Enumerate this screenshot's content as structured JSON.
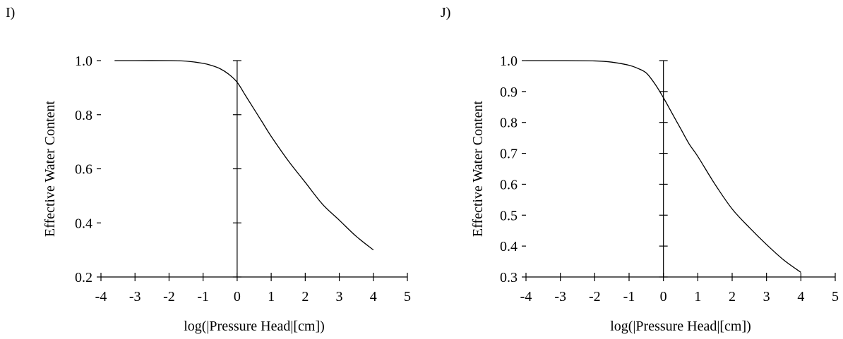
{
  "chart_data": [
    {
      "panel_label": "I)",
      "type": "line",
      "xlabel": "log(|Pressure Head|[cm])",
      "ylabel": "Effective Water Content",
      "xlim": [
        -4,
        5
      ],
      "ylim": [
        0.2,
        1.0
      ],
      "xticks": [
        -4,
        -3,
        -2,
        -1,
        0,
        1,
        2,
        3,
        4,
        5
      ],
      "yticks": [
        0.2,
        0.4,
        0.6,
        0.8,
        1.0
      ],
      "xtick_labels": [
        "-4",
        "-3",
        "-2",
        "-1",
        "0",
        "1",
        "2",
        "3",
        "4",
        "5"
      ],
      "ytick_labels": [
        "0.2",
        "0.4",
        "0.6",
        "0.8",
        "1.0"
      ],
      "grid": false,
      "series": [
        {
          "x": [
            -3.6,
            -3.0,
            -2.0,
            -1.5,
            -1.0,
            -0.75,
            -0.5,
            -0.25,
            0.0,
            0.25,
            0.5,
            0.75,
            1.0,
            1.5,
            2.0,
            2.5,
            3.0,
            3.5,
            4.0
          ],
          "y": [
            1.0,
            1.0,
            1.0,
            0.998,
            0.99,
            0.982,
            0.97,
            0.95,
            0.92,
            0.87,
            0.82,
            0.77,
            0.72,
            0.63,
            0.55,
            0.47,
            0.41,
            0.35,
            0.3
          ]
        }
      ]
    },
    {
      "panel_label": "J)",
      "type": "line",
      "xlabel": "log(|Pressure Head|[cm])",
      "ylabel": "Effective Water Content",
      "xlim": [
        -4,
        5
      ],
      "ylim": [
        0.3,
        1.0
      ],
      "xticks": [
        -4,
        -3,
        -2,
        -1,
        0,
        1,
        2,
        3,
        4,
        5
      ],
      "yticks": [
        0.3,
        0.4,
        0.5,
        0.6,
        0.7,
        0.8,
        0.9,
        1.0
      ],
      "xtick_labels": [
        "-4",
        "-3",
        "-2",
        "-1",
        "0",
        "1",
        "2",
        "3",
        "4",
        "5"
      ],
      "ytick_labels": [
        "0.3",
        "0.4",
        "0.5",
        "0.6",
        "0.7",
        "0.8",
        "0.9",
        "1.0"
      ],
      "grid": false,
      "series": [
        {
          "x": [
            -4.0,
            -3.0,
            -2.0,
            -1.5,
            -1.0,
            -0.75,
            -0.5,
            -0.25,
            0.0,
            0.25,
            0.5,
            0.75,
            1.0,
            1.5,
            2.0,
            2.5,
            3.0,
            3.5,
            4.0
          ],
          "y": [
            1.0,
            1.0,
            0.999,
            0.995,
            0.985,
            0.975,
            0.96,
            0.925,
            0.88,
            0.83,
            0.78,
            0.73,
            0.69,
            0.6,
            0.52,
            0.46,
            0.405,
            0.355,
            0.315
          ]
        }
      ]
    }
  ]
}
